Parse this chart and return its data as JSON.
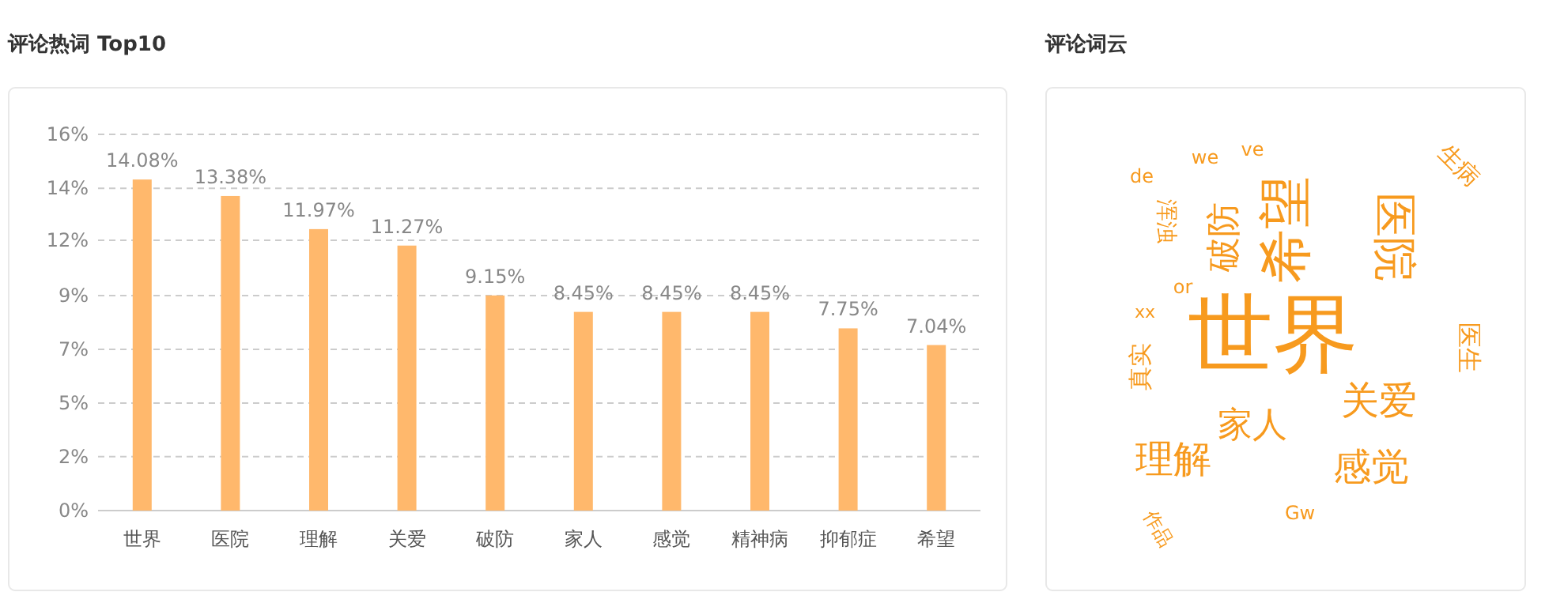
{
  "chart_data": [
    {
      "type": "bar",
      "title": "评论热词 Top10",
      "categories": [
        "世界",
        "医院",
        "理解",
        "关爱",
        "破防",
        "家人",
        "感觉",
        "精神病",
        "抑郁症",
        "希望"
      ],
      "values": [
        14.08,
        13.38,
        11.97,
        11.27,
        9.15,
        8.45,
        8.45,
        8.45,
        7.75,
        7.04
      ],
      "value_labels": [
        "14.08%",
        "13.38%",
        "11.97%",
        "11.27%",
        "9.15%",
        "8.45%",
        "8.45%",
        "8.45%",
        "7.75%",
        "7.04%"
      ],
      "color": "#ffb86c",
      "ylim": [
        0,
        16
      ],
      "yticks": [
        {
          "value": 0,
          "label": "0%"
        },
        {
          "value": 2.29,
          "label": "2%"
        },
        {
          "value": 4.57,
          "label": "5%"
        },
        {
          "value": 6.86,
          "label": "7%"
        },
        {
          "value": 9.14,
          "label": "9%"
        },
        {
          "value": 11.5,
          "label": "12%"
        },
        {
          "value": 13.71,
          "label": "14%"
        },
        {
          "value": 16,
          "label": "16%"
        }
      ],
      "grid": "y"
    },
    {
      "type": "other",
      "title": "评论词云",
      "annotations": [
        "世界",
        "希望",
        "医院",
        "家人",
        "理解",
        "关爱",
        "感觉",
        "破防",
        "生病",
        "医生",
        "真实",
        "浑浊",
        "作品",
        "we",
        "ve",
        "or",
        "de",
        "Gw",
        "xx"
      ]
    }
  ]
}
